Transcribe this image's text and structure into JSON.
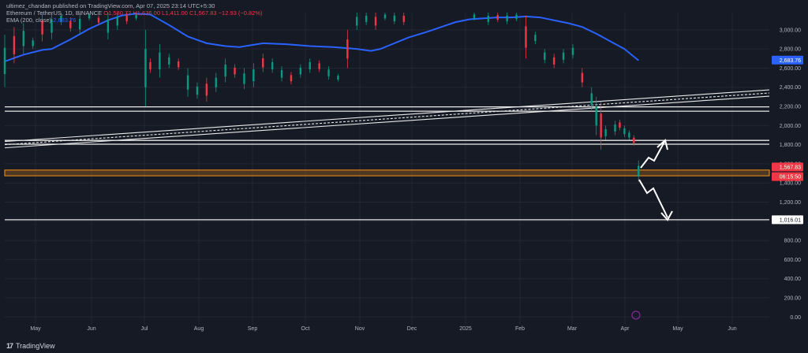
{
  "header": {
    "publisher": "ultimez_chandan published on TradingView.com, Apr 07, 2025 23:14 UTC+5:30",
    "symbol": "Ethereum / TetherUS, 1D, BINANCE",
    "ohlc": "O1,580.72 H1,636.00 L1,411.00 C1,567.83 −12.93 (−0.82%)",
    "indicator": "EMA (200, close)",
    "indicator_value": "2,683.76"
  },
  "brand": "TradingView",
  "colors": {
    "background": "#161a25",
    "up": "#089981",
    "down": "#f23645",
    "ema": "#2962ff",
    "lines": "#e8e8e8",
    "support_band": "#f7931a"
  },
  "chart_data": {
    "type": "candlestick",
    "symbol": "ETHUSDT",
    "interval": "1D",
    "ylim": [
      -80,
      3180
    ],
    "y_ticks": [
      0,
      200,
      400,
      600,
      800,
      1000,
      1200,
      1400,
      1600,
      1800,
      2000,
      2200,
      2400,
      2600,
      2800,
      3000
    ],
    "y_tick_labels": [
      "0.00",
      "200.00",
      "400.00",
      "600.00",
      "800.00",
      "1,000.00",
      "1,200.00",
      "1,400.00",
      "1,600.00",
      "1,800.00",
      "2,000.00",
      "2,200.00",
      "2,400.00",
      "2,600.00",
      "2,800.00",
      "3,000.00"
    ],
    "x_labels": [
      "May",
      "Jun",
      "Jul",
      "Aug",
      "Sep",
      "Oct",
      "Nov",
      "Dec",
      "2025",
      "Feb",
      "Mar",
      "Apr",
      "May",
      "Jun"
    ],
    "price_labels": [
      {
        "value": 2683.76,
        "text": "2,683.76",
        "color": "#2962ff"
      },
      {
        "value": 1567.83,
        "text": "1,567.83",
        "color": "#f23645"
      },
      {
        "value": 1467,
        "text": "06:15:50",
        "color": "#f23645"
      },
      {
        "value": 1016.01,
        "text": "1,016.01",
        "color": "#ffffff"
      }
    ],
    "horizontal_levels": [
      2195,
      2150,
      1845,
      1805,
      1016
    ],
    "support_band": [
      1475,
      1535
    ],
    "trend_channel": {
      "start": [
        "May 2024",
        1800
      ],
      "end": [
        "Jun 2025",
        2340
      ]
    },
    "ema_200": [
      [
        0,
        2670
      ],
      [
        8,
        2740
      ],
      [
        16,
        2790
      ],
      [
        20,
        2800
      ],
      [
        28,
        2900
      ],
      [
        36,
        3010
      ],
      [
        44,
        3100
      ],
      [
        50,
        3150
      ],
      [
        56,
        3170
      ],
      [
        62,
        3160
      ],
      [
        70,
        3050
      ],
      [
        78,
        2930
      ],
      [
        86,
        2860
      ],
      [
        94,
        2830
      ],
      [
        100,
        2820
      ],
      [
        110,
        2860
      ],
      [
        120,
        2850
      ],
      [
        130,
        2830
      ],
      [
        140,
        2820
      ],
      [
        150,
        2800
      ],
      [
        156,
        2780
      ],
      [
        160,
        2800
      ],
      [
        166,
        2860
      ],
      [
        172,
        2920
      ],
      [
        180,
        2980
      ],
      [
        186,
        3030
      ],
      [
        192,
        3080
      ],
      [
        198,
        3110
      ],
      [
        204,
        3120
      ],
      [
        210,
        3130
      ],
      [
        216,
        3130
      ],
      [
        222,
        3140
      ],
      [
        228,
        3130
      ],
      [
        234,
        3100
      ],
      [
        240,
        3070
      ],
      [
        246,
        3030
      ],
      [
        252,
        2960
      ],
      [
        258,
        2880
      ],
      [
        264,
        2800
      ],
      [
        270,
        2680
      ]
    ],
    "candles": [
      [
        0,
        2400,
        2950
      ],
      [
        4,
        2650,
        3030
      ],
      [
        8,
        2750,
        3070
      ],
      [
        12,
        2800,
        2920
      ],
      [
        16,
        2880,
        3170
      ],
      [
        20,
        2900,
        3180
      ],
      [
        24,
        3050,
        3180
      ],
      [
        28,
        2980,
        3130
      ],
      [
        32,
        2950,
        3170
      ],
      [
        36,
        3100,
        3180
      ],
      [
        40,
        3050,
        3150
      ],
      [
        44,
        2900,
        3180
      ],
      [
        48,
        3000,
        3180
      ],
      [
        52,
        3060,
        3180
      ],
      [
        56,
        3100,
        3180
      ],
      [
        60,
        2200,
        3000
      ],
      [
        62,
        2550,
        2700
      ],
      [
        66,
        2500,
        2850
      ],
      [
        70,
        2600,
        2750
      ],
      [
        74,
        2580,
        2700
      ],
      [
        78,
        2300,
        2600
      ],
      [
        82,
        2280,
        2450
      ],
      [
        86,
        2250,
        2500
      ],
      [
        90,
        2350,
        2550
      ],
      [
        94,
        2450,
        2700
      ],
      [
        98,
        2500,
        2640
      ],
      [
        102,
        2380,
        2600
      ],
      [
        106,
        2400,
        2650
      ],
      [
        110,
        2560,
        2750
      ],
      [
        114,
        2550,
        2700
      ],
      [
        118,
        2460,
        2620
      ],
      [
        122,
        2430,
        2560
      ],
      [
        126,
        2500,
        2640
      ],
      [
        130,
        2550,
        2700
      ],
      [
        134,
        2560,
        2680
      ],
      [
        138,
        2480,
        2620
      ],
      [
        142,
        2460,
        2540
      ],
      [
        146,
        2600,
        3000
      ],
      [
        150,
        3000,
        3180
      ],
      [
        154,
        3050,
        3180
      ],
      [
        158,
        3000,
        3180
      ],
      [
        162,
        3100,
        3180
      ],
      [
        166,
        3060,
        3180
      ],
      [
        170,
        3050,
        3180
      ],
      [
        200,
        3100,
        3180
      ],
      [
        206,
        3050,
        3180
      ],
      [
        210,
        3080,
        3180
      ],
      [
        214,
        3060,
        3180
      ],
      [
        218,
        3090,
        3180
      ],
      [
        222,
        2700,
        3150
      ],
      [
        226,
        2850,
        2980
      ],
      [
        230,
        2650,
        2800
      ],
      [
        234,
        2600,
        2750
      ],
      [
        238,
        2650,
        2800
      ],
      [
        242,
        2700,
        2850
      ],
      [
        246,
        2400,
        2600
      ],
      [
        250,
        2150,
        2400
      ],
      [
        252,
        1900,
        2300
      ],
      [
        254,
        1750,
        2250
      ],
      [
        256,
        1850,
        2000
      ],
      [
        260,
        1900,
        2050
      ],
      [
        262,
        1950,
        2060
      ],
      [
        264,
        1880,
        2000
      ],
      [
        266,
        1850,
        1950
      ],
      [
        268,
        1790,
        1900
      ],
      [
        270,
        1411,
        1636
      ]
    ]
  }
}
